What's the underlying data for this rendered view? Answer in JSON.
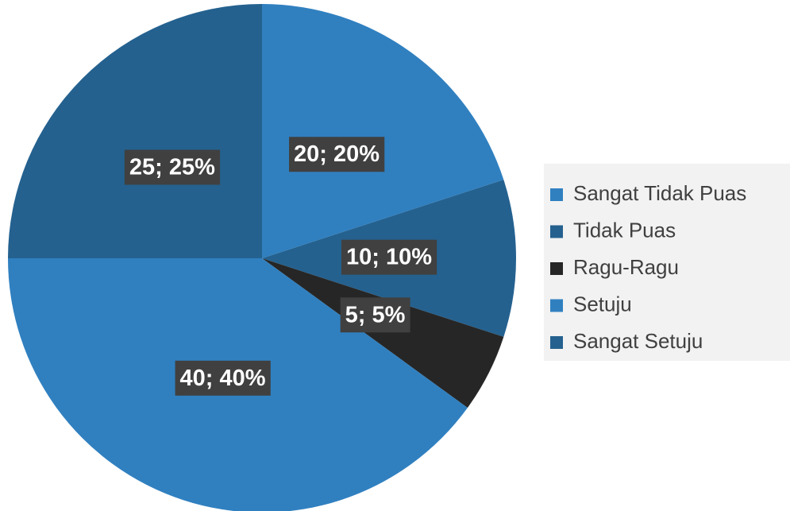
{
  "chart_data": {
    "type": "pie",
    "categories": [
      "Sangat Tidak Puas",
      "Tidak Puas",
      "Ragu-Ragu",
      "Setuju",
      "Sangat Setuju"
    ],
    "values": [
      20,
      10,
      5,
      40,
      25
    ],
    "value_labels": [
      "20; 20%",
      "10; 10%",
      "5; 5%",
      "40; 40%",
      "25; 25%"
    ],
    "colors": [
      "#3080c0",
      "#24618f",
      "#262626",
      "#3080c0",
      "#24618f"
    ],
    "legend": "right"
  }
}
